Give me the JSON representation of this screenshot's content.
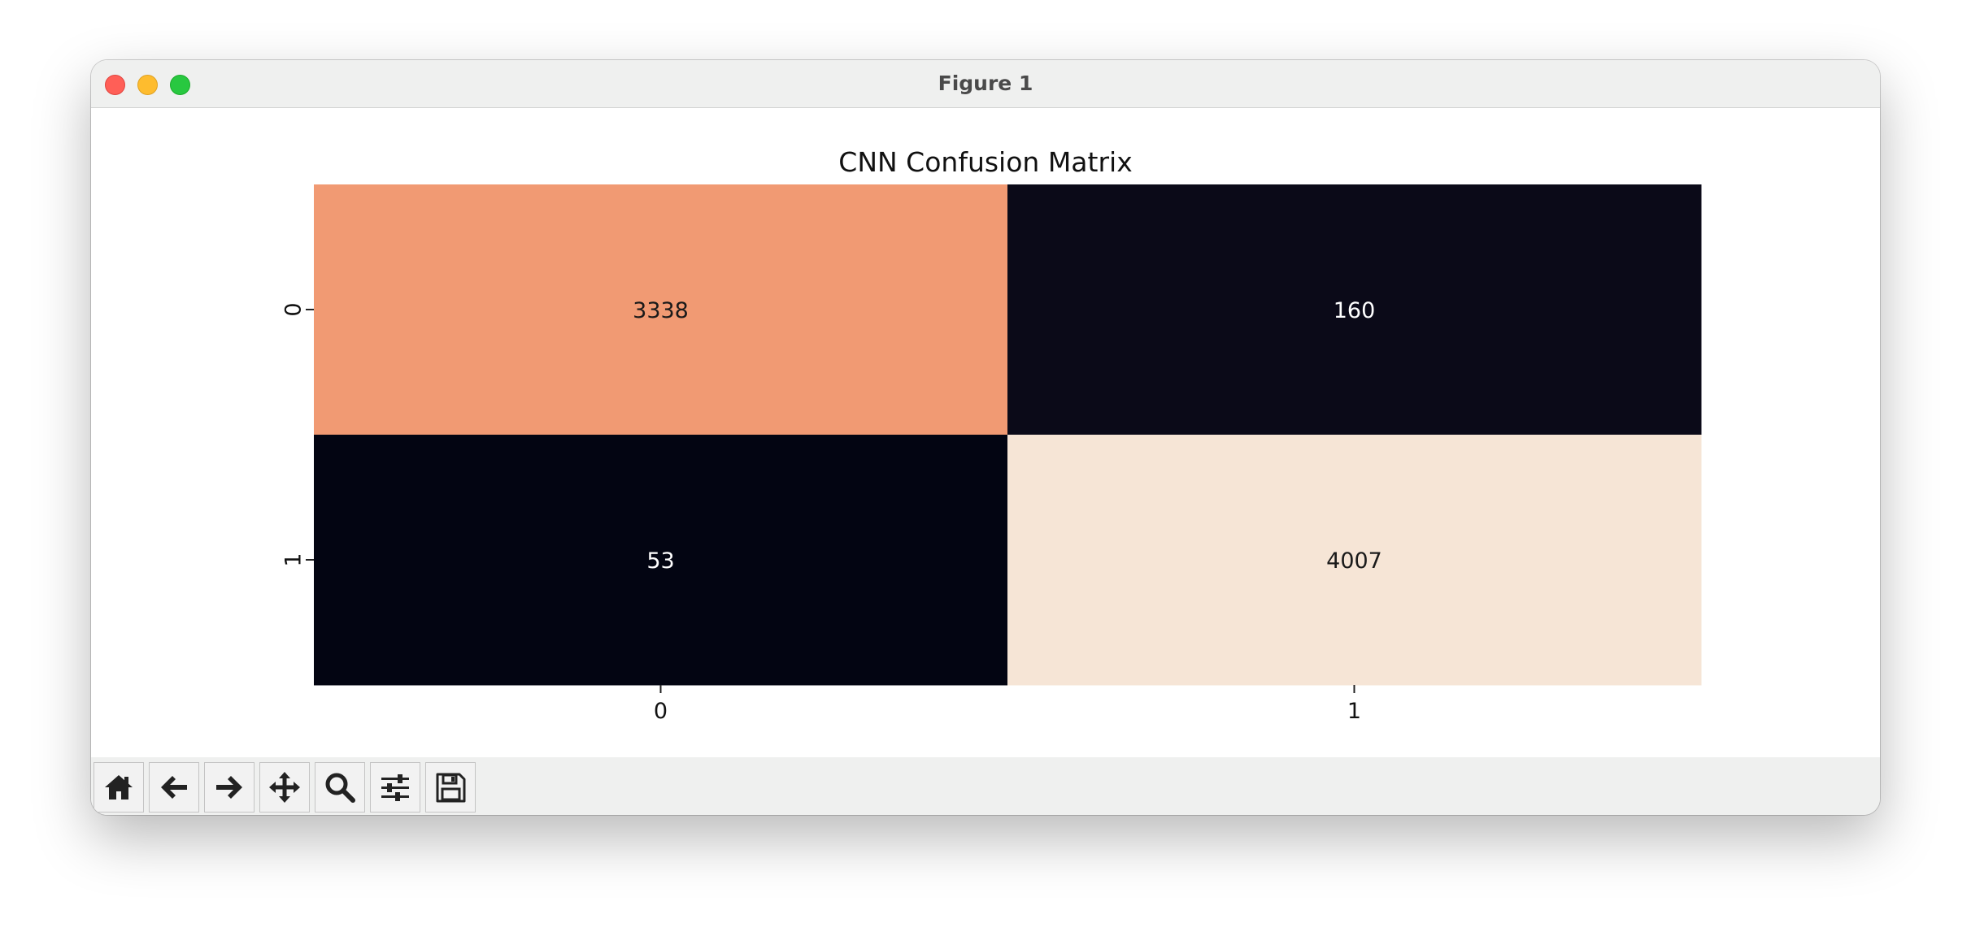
{
  "window": {
    "title": "Figure 1"
  },
  "toolbar": {
    "buttons": [
      {
        "name": "home-button",
        "icon": "home-icon"
      },
      {
        "name": "back-button",
        "icon": "arrow-left-icon"
      },
      {
        "name": "forward-button",
        "icon": "arrow-right-icon"
      },
      {
        "name": "pan-button",
        "icon": "move-icon"
      },
      {
        "name": "zoom-button",
        "icon": "magnifier-icon"
      },
      {
        "name": "configure-subplots-button",
        "icon": "sliders-icon"
      },
      {
        "name": "save-button",
        "icon": "floppy-disk-icon"
      }
    ]
  },
  "chart_data": {
    "type": "heatmap",
    "title": "CNN Confusion Matrix",
    "xlabel": "",
    "ylabel": "",
    "x_categories": [
      "0",
      "1"
    ],
    "y_categories": [
      "0",
      "1"
    ],
    "values": [
      [
        3338,
        160
      ],
      [
        53,
        4007
      ]
    ],
    "colorbar": false,
    "colors": [
      [
        "#f19a73",
        "#0b0a18"
      ],
      [
        "#030512",
        "#f6e5d6"
      ]
    ],
    "text_colors": [
      [
        "#1a1a1a",
        "#ffffff"
      ],
      [
        "#ffffff",
        "#1a1a1a"
      ]
    ]
  }
}
